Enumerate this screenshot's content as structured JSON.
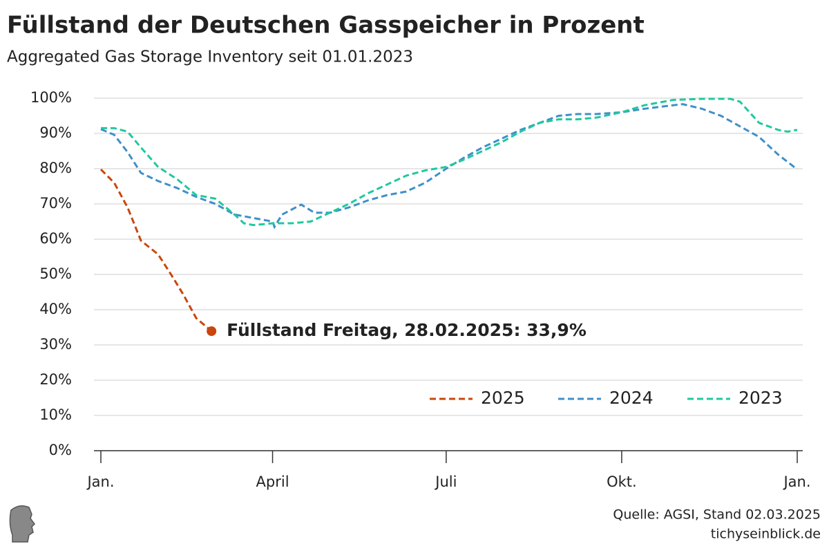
{
  "chart_data": {
    "type": "line",
    "title": "Füllstand der Deutschen Gasspeicher in Prozent",
    "subtitle": "Aggregated Gas Storage Inventory seit 01.01.2023",
    "xlim": [
      0,
      365
    ],
    "xticks": [
      {
        "value": 0,
        "label": "Jan."
      },
      {
        "value": 90,
        "label": "April"
      },
      {
        "value": 181,
        "label": "Juli"
      },
      {
        "value": 273,
        "label": "Okt."
      },
      {
        "value": 365,
        "label": "Jan."
      }
    ],
    "ylim": [
      0,
      100
    ],
    "yticks": [
      {
        "value": 0,
        "label": "0%"
      },
      {
        "value": 10,
        "label": "10%"
      },
      {
        "value": 20,
        "label": "20%"
      },
      {
        "value": 30,
        "label": "30%"
      },
      {
        "value": 40,
        "label": "40%"
      },
      {
        "value": 50,
        "label": "50%"
      },
      {
        "value": 60,
        "label": "60%"
      },
      {
        "value": 70,
        "label": "70%"
      },
      {
        "value": 80,
        "label": "80%"
      },
      {
        "value": 90,
        "label": "90%"
      },
      {
        "value": 100,
        "label": "100%"
      }
    ],
    "grid": true,
    "legend": "lower right",
    "series": [
      {
        "name": "2025",
        "color": "#c9460e",
        "x": [
          0,
          7,
          14,
          21,
          30,
          37,
          43,
          50,
          58
        ],
        "values": [
          79.8,
          76,
          69,
          59.6,
          55.7,
          49.8,
          44.5,
          37.6,
          33.9
        ]
      },
      {
        "name": "2024",
        "color": "#3f8fca",
        "x": [
          0,
          7,
          14,
          21,
          30,
          40,
          50,
          60,
          70,
          80,
          90,
          91,
          95,
          105,
          112,
          120,
          130,
          140,
          150,
          160,
          170,
          181,
          190,
          200,
          210,
          220,
          230,
          240,
          250,
          260,
          273,
          285,
          300,
          305,
          315,
          325,
          335,
          345,
          355,
          365
        ],
        "values": [
          91.2,
          89.6,
          84.7,
          78.8,
          76.5,
          74.5,
          72,
          70,
          67,
          66,
          65,
          63.5,
          67,
          69.8,
          67.5,
          67.5,
          69,
          71,
          72.5,
          73.5,
          76,
          80,
          83,
          86,
          88.5,
          91,
          93,
          95,
          95.5,
          95.5,
          96,
          97,
          98,
          98.3,
          97,
          95,
          92,
          89,
          84,
          79.8
        ]
      },
      {
        "name": "2023",
        "color": "#1ec99e",
        "x": [
          0,
          7,
          14,
          21,
          30,
          40,
          50,
          60,
          70,
          75,
          80,
          90,
          100,
          110,
          120,
          130,
          140,
          150,
          160,
          170,
          181,
          190,
          200,
          210,
          220,
          230,
          240,
          250,
          260,
          273,
          285,
          295,
          300,
          315,
          330,
          335,
          345,
          355,
          360,
          365
        ],
        "values": [
          91.5,
          91.5,
          90.5,
          86,
          80.5,
          77,
          72.5,
          71.5,
          67,
          64.5,
          64,
          64.5,
          64.5,
          65,
          67.5,
          70,
          73,
          75.5,
          78,
          79.5,
          80.5,
          82.5,
          85,
          87.5,
          90.5,
          93,
          94,
          94,
          94.5,
          96,
          98,
          99,
          99.5,
          99.8,
          99.8,
          99,
          93,
          91,
          90.5,
          91
        ]
      }
    ],
    "annotation": "Füllstand Freitag, 28.02.2025: 33,9%",
    "source": "Quelle: AGSI, Stand 02.03.2025",
    "website": "tichyseinblick.de"
  }
}
